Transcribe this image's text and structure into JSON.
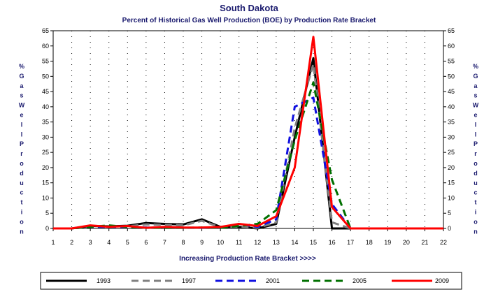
{
  "chart_data": {
    "type": "line",
    "title": "South Dakota",
    "subtitle": "Percent of Historical Gas Well Production (BOE) by Production Rate Bracket",
    "xlabel": "Increasing Production Rate Bracket >>>>",
    "ylabel": "% Gas Well Production",
    "x": [
      1,
      2,
      3,
      4,
      5,
      6,
      7,
      8,
      9,
      10,
      11,
      12,
      13,
      14,
      15,
      16,
      17,
      18,
      19,
      20,
      21,
      22
    ],
    "xlim": [
      1,
      22
    ],
    "ylim": [
      0,
      65
    ],
    "yticks": [
      0,
      5,
      10,
      15,
      20,
      25,
      30,
      35,
      40,
      45,
      50,
      55,
      60,
      65
    ],
    "grid": true,
    "legend_position": "bottom",
    "series": [
      {
        "name": "1993",
        "color": "#000000",
        "dash": "solid",
        "values": [
          0,
          0,
          0.8,
          0.7,
          0.9,
          1.8,
          1.5,
          1.3,
          3.0,
          0.5,
          0.5,
          0,
          1.5,
          30,
          56,
          0,
          0,
          0,
          0,
          0,
          0,
          0
        ]
      },
      {
        "name": "1997",
        "color": "#808080",
        "dash": "dashed",
        "values": [
          0,
          0,
          0.6,
          0.6,
          0.7,
          1.3,
          1.2,
          1.0,
          2.5,
          0.4,
          0.6,
          0.2,
          2.0,
          33,
          54,
          2,
          0,
          0,
          0,
          0,
          0,
          0
        ]
      },
      {
        "name": "2001",
        "color": "#1010e0",
        "dash": "dashed",
        "values": [
          0,
          0,
          0.5,
          0.5,
          0.5,
          0.3,
          0.2,
          0.2,
          0.2,
          0.2,
          1.5,
          0.5,
          3,
          40,
          43,
          8,
          0,
          0,
          0,
          0,
          0,
          0
        ]
      },
      {
        "name": "2005",
        "color": "#007000",
        "dash": "dashed",
        "values": [
          0,
          0,
          0.5,
          1.0,
          0.5,
          0.2,
          0.2,
          0.2,
          0.3,
          0.2,
          0.8,
          1.5,
          6,
          29,
          48,
          16,
          0,
          0,
          0,
          0,
          0,
          0
        ]
      },
      {
        "name": "2009",
        "color": "#ff0000",
        "dash": "solid",
        "values": [
          0,
          0,
          1.0,
          0.5,
          0.8,
          0.2,
          0.5,
          0.3,
          0.3,
          0.5,
          1.5,
          0.8,
          4,
          20,
          63,
          7,
          0,
          0,
          0,
          0,
          0,
          0
        ]
      }
    ]
  }
}
